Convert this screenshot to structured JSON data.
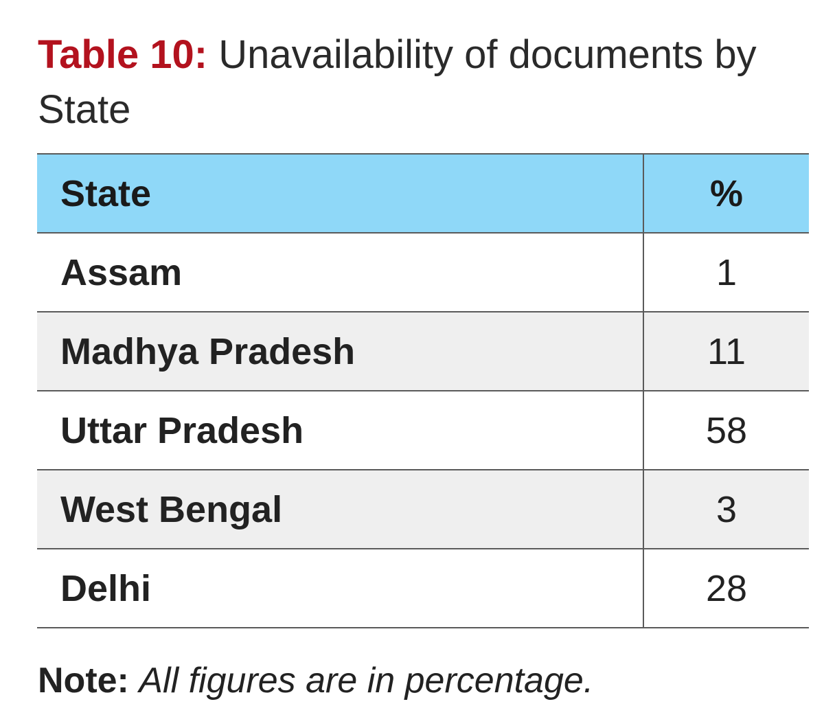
{
  "title": {
    "label": "Table 10:",
    "text": "Unavailability of documents by State"
  },
  "chart_data": {
    "type": "table",
    "columns": [
      "State",
      "%"
    ],
    "rows": [
      {
        "state": "Assam",
        "value": 1
      },
      {
        "state": "Madhya Pradesh",
        "value": 11
      },
      {
        "state": "Uttar Pradesh",
        "value": 58
      },
      {
        "state": "West Bengal",
        "value": 3
      },
      {
        "state": "Delhi",
        "value": 28
      }
    ]
  },
  "note": {
    "label": "Note:",
    "text": "All figures are in percentage."
  },
  "colors": {
    "title_label": "#b3121e",
    "header_background": "#8fd8f8",
    "alt_row_background": "#efefef"
  }
}
